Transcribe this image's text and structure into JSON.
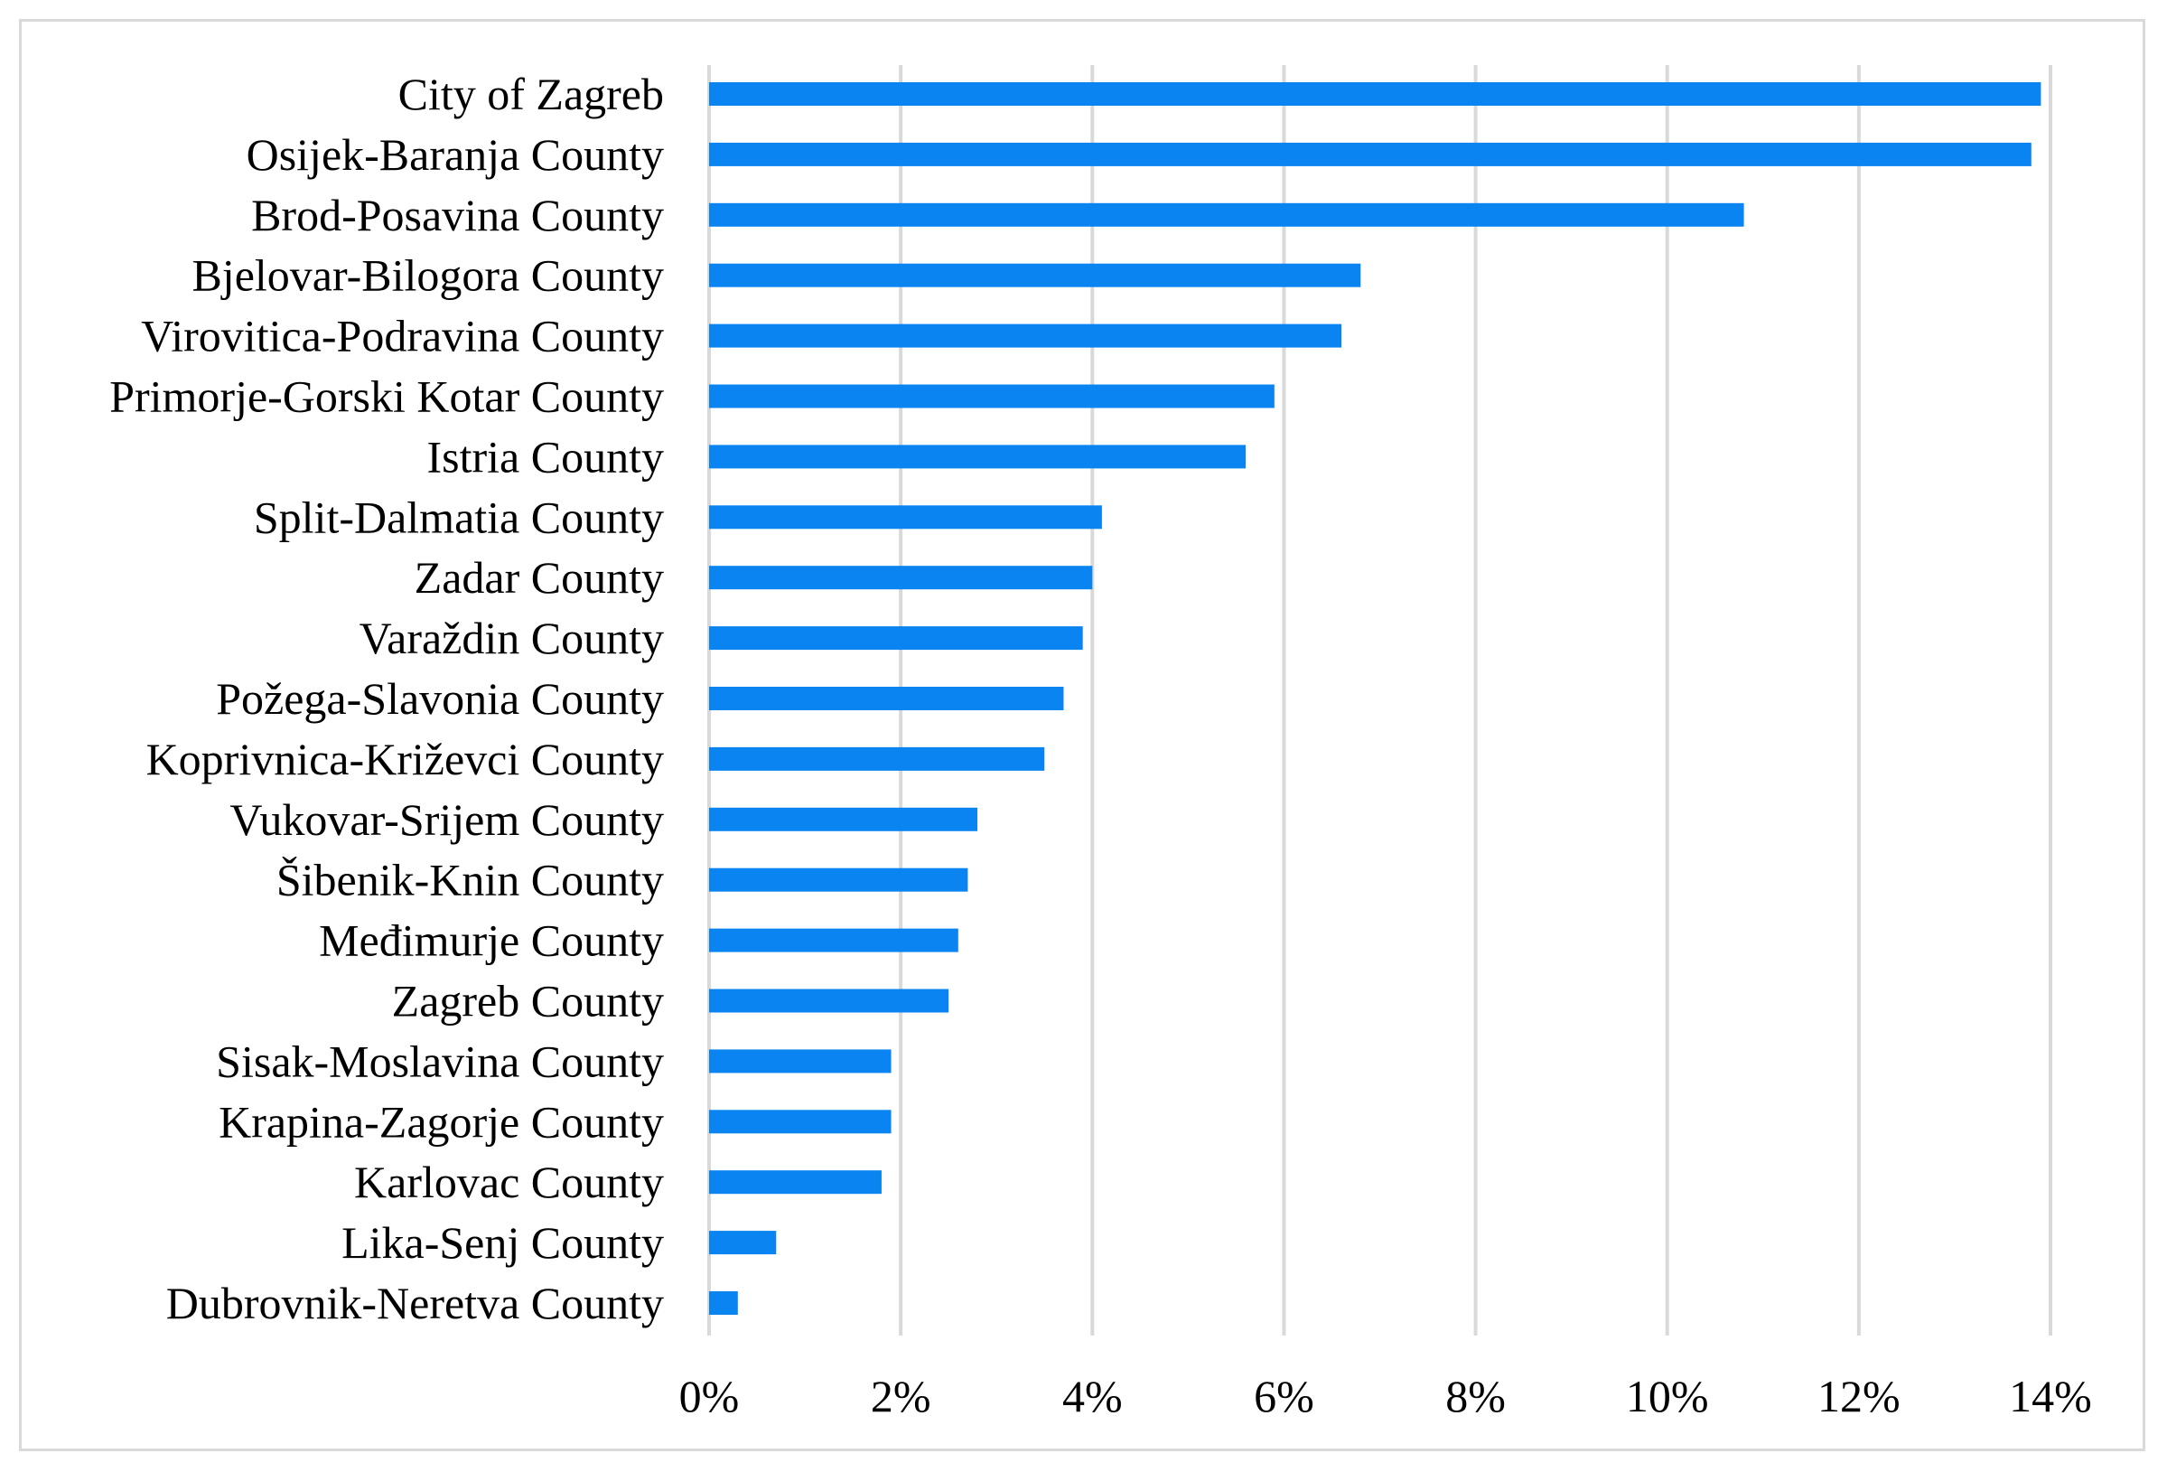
{
  "chart_data": {
    "type": "bar",
    "orientation": "horizontal",
    "title": "",
    "xlabel": "",
    "ylabel": "",
    "categories": [
      "City of Zagreb",
      "Osijek-Baranja County",
      "Brod-Posavina County",
      "Bjelovar-Bilogora County",
      "Virovitica-Podravina County",
      "Primorje-Gorski Kotar County",
      "Istria County",
      "Split-Dalmatia County",
      "Zadar County",
      "Varaždin County",
      "Požega-Slavonia County",
      "Koprivnica-Križevci County",
      "Vukovar-Srijem County",
      "Šibenik-Knin County",
      "Međimurje County",
      "Zagreb County",
      "Sisak-Moslavina County",
      "Krapina-Zagorje County",
      "Karlovac County",
      "Lika-Senj County",
      "Dubrovnik-Neretva County"
    ],
    "values": [
      13.9,
      13.8,
      10.8,
      6.8,
      6.6,
      5.9,
      5.6,
      4.1,
      4.0,
      3.9,
      3.7,
      3.5,
      2.8,
      2.7,
      2.6,
      2.5,
      1.9,
      1.9,
      1.8,
      0.7,
      0.3
    ],
    "xlim": [
      0,
      14
    ],
    "x_ticks": [
      0,
      2,
      4,
      6,
      8,
      10,
      12,
      14
    ],
    "x_tick_labels": [
      "0%",
      "2%",
      "4%",
      "6%",
      "8%",
      "10%",
      "12%",
      "14%"
    ],
    "grid": true,
    "bar_color": "#0a84f0",
    "grid_color": "#d9d9d9"
  }
}
